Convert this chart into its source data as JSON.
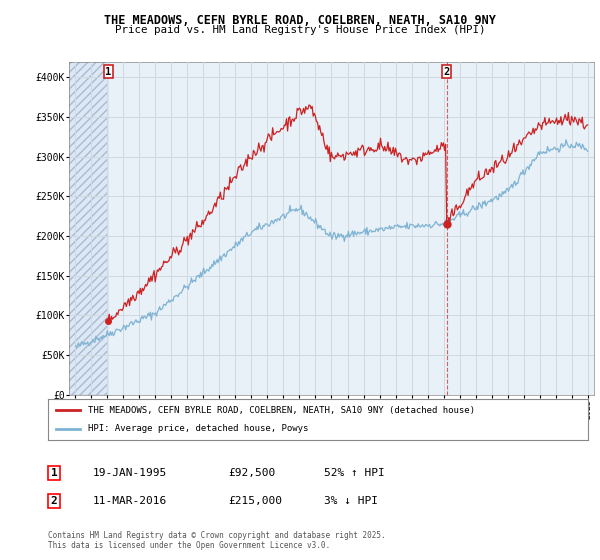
{
  "title_line1": "THE MEADOWS, CEFN BYRLE ROAD, COELBREN, NEATH, SA10 9NY",
  "title_line2": "Price paid vs. HM Land Registry's House Price Index (HPI)",
  "ylim": [
    0,
    420000
  ],
  "yticks": [
    0,
    50000,
    100000,
    150000,
    200000,
    250000,
    300000,
    350000,
    400000
  ],
  "ytick_labels": [
    "£0",
    "£50K",
    "£100K",
    "£150K",
    "£200K",
    "£250K",
    "£300K",
    "£350K",
    "£400K"
  ],
  "xlim_start": 1992.6,
  "xlim_end": 2025.4,
  "xticks": [
    1993,
    1994,
    1995,
    1996,
    1997,
    1998,
    1999,
    2000,
    2001,
    2002,
    2003,
    2004,
    2005,
    2006,
    2007,
    2008,
    2009,
    2010,
    2011,
    2012,
    2013,
    2014,
    2015,
    2016,
    2017,
    2018,
    2019,
    2020,
    2021,
    2022,
    2023,
    2024,
    2025
  ],
  "hpi_color": "#7fb3d3",
  "price_color": "#cc2222",
  "sale1_x": 1995.05,
  "sale1_y": 92500,
  "sale2_x": 2016.19,
  "sale2_y": 215000,
  "legend_line1": "THE MEADOWS, CEFN BYRLE ROAD, COELBREN, NEATH, SA10 9NY (detached house)",
  "legend_line2": "HPI: Average price, detached house, Powys",
  "annotation1_label": "1",
  "annotation2_label": "2",
  "note1_box": "1",
  "note1_date": "19-JAN-1995",
  "note1_price": "£92,500",
  "note1_hpi": "52% ↑ HPI",
  "note2_box": "2",
  "note2_date": "11-MAR-2016",
  "note2_price": "£215,000",
  "note2_hpi": "3% ↓ HPI",
  "footer": "Contains HM Land Registry data © Crown copyright and database right 2025.\nThis data is licensed under the Open Government Licence v3.0.",
  "hatch_color": "#dce8f5",
  "hatch_edge_color": "#aabbd0",
  "grid_color": "#d0d8e0",
  "bg_color": "#e8f0f8"
}
